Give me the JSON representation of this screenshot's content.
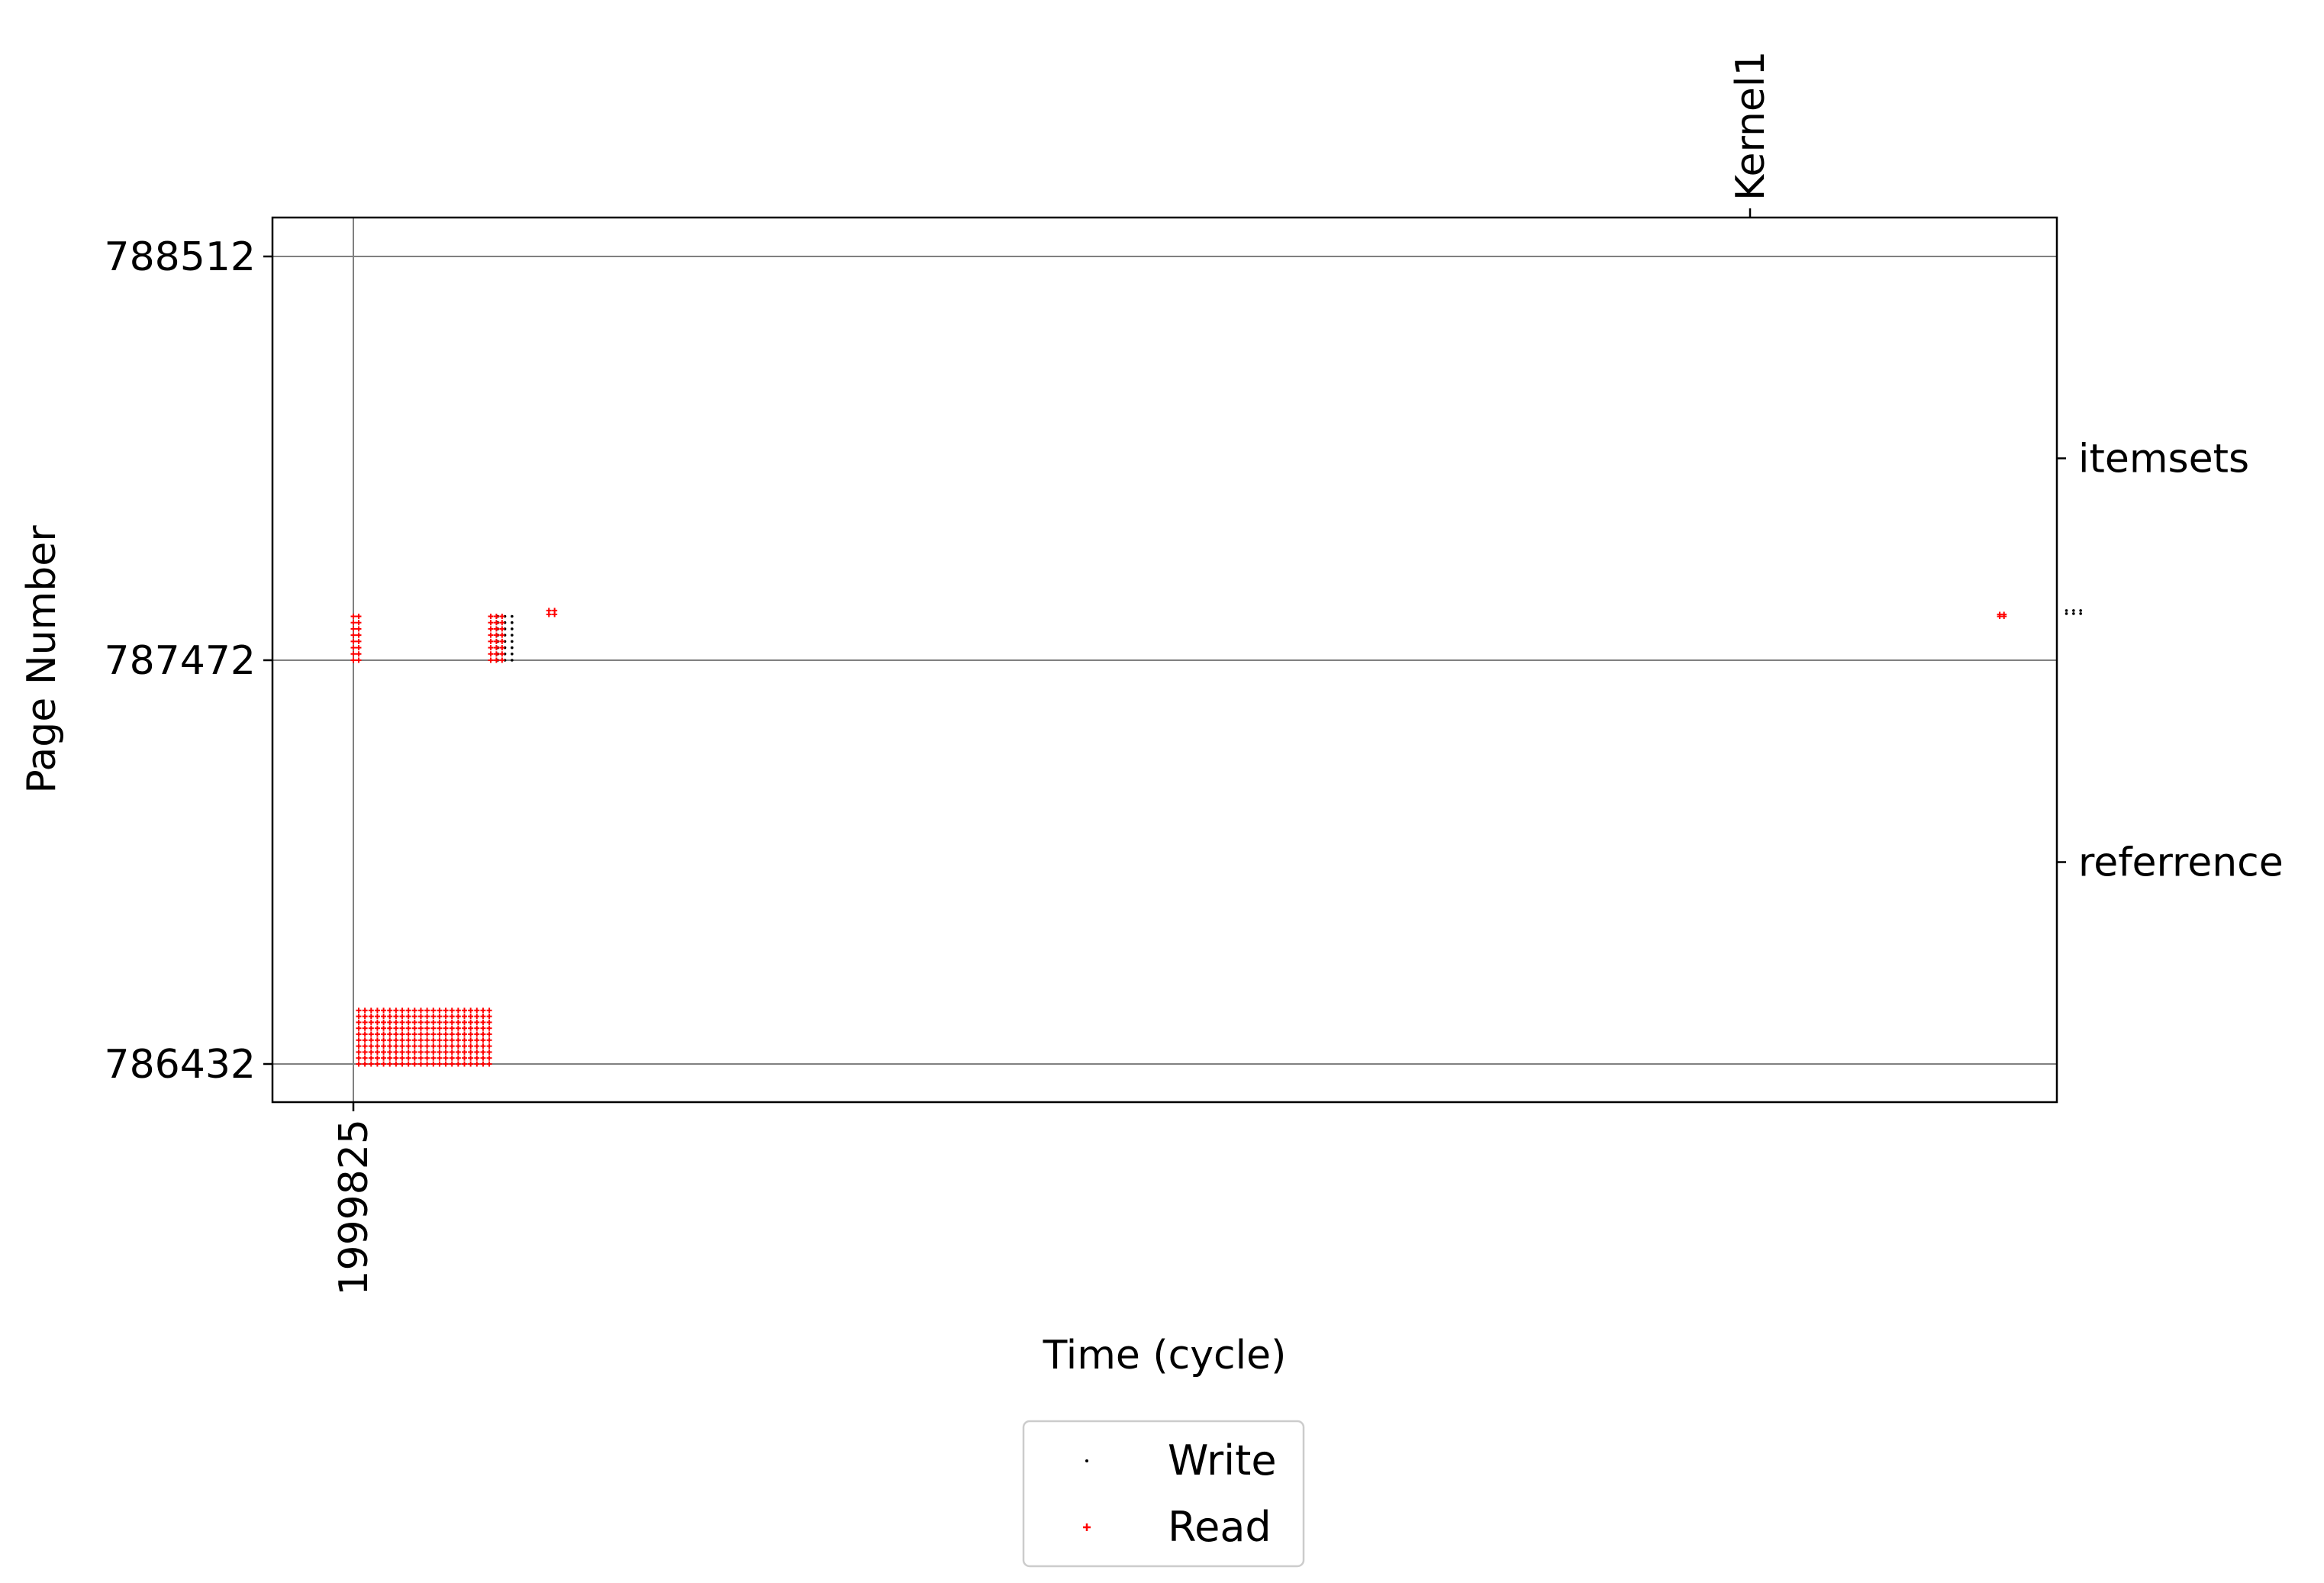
{
  "chart_data": {
    "type": "scatter",
    "title": "",
    "xlabel": "Time (cycle)",
    "ylabel": "Page Number",
    "x_ticks": [
      1999825
    ],
    "y_ticks": [
      786432,
      787472,
      788512
    ],
    "x_top_ticks": [
      {
        "label": "Kernel1"
      }
    ],
    "y_right_ticks": [
      {
        "label": "itemsets",
        "y": 787992
      },
      {
        "label": "referrence",
        "y": 786952
      }
    ],
    "grid": true,
    "legend_position": "below",
    "legend": [
      "Write",
      "Read"
    ],
    "series": [
      {
        "name": "Write",
        "color": "#000000",
        "marker": "small-dot",
        "clusters": [
          {
            "x_range": [
              2010000,
              2011000
            ],
            "y_range": [
              787472,
              787585
            ]
          },
          {
            "x_range": [
              2120500,
              2121500
            ],
            "y_range": [
              787592,
              787600
            ]
          }
        ]
      },
      {
        "name": "Read",
        "color": "#ff0000",
        "marker": "plus",
        "clusters": [
          {
            "x_range": [
              1999825,
              2000200
            ],
            "y_range": [
              787472,
              787585
            ]
          },
          {
            "x_range": [
              2000200,
              2009400
            ],
            "y_range": [
              786432,
              786570
            ]
          },
          {
            "x_range": [
              2009500,
              2010300
            ],
            "y_range": [
              787472,
              787585
            ]
          },
          {
            "x_range": [
              2013600,
              2014000
            ],
            "y_range": [
              787590,
              787600
            ]
          },
          {
            "x_range": [
              2115800,
              2116100
            ],
            "y_range": [
              787585,
              787590
            ]
          }
        ]
      }
    ]
  }
}
